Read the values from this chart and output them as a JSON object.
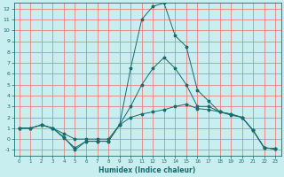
{
  "xlabel": "Humidex (Indice chaleur)",
  "xlim": [
    -0.5,
    23.5
  ],
  "ylim": [
    -1.5,
    12.5
  ],
  "yticks": [
    -1,
    0,
    1,
    2,
    3,
    4,
    5,
    6,
    7,
    8,
    9,
    10,
    11,
    12
  ],
  "xticks": [
    0,
    1,
    2,
    3,
    4,
    5,
    6,
    7,
    8,
    9,
    10,
    11,
    12,
    13,
    14,
    15,
    16,
    17,
    18,
    19,
    20,
    21,
    22,
    23
  ],
  "bg_color": "#c8eef0",
  "grid_color": "#f08080",
  "line_color": "#1a6b6b",
  "line_high_y": [
    1.0,
    1.0,
    1.3,
    1.0,
    0.2,
    -1.0,
    -0.2,
    -0.2,
    -0.2,
    1.3,
    6.5,
    11.0,
    12.2,
    12.5,
    9.5,
    8.5,
    4.5,
    3.5,
    2.5,
    2.3,
    2.0,
    0.8,
    -0.8,
    -0.9
  ],
  "line_mid_y": [
    1.0,
    1.0,
    1.3,
    1.0,
    0.1,
    -0.8,
    -0.2,
    -0.2,
    -0.2,
    1.3,
    3.0,
    5.0,
    6.5,
    7.5,
    6.5,
    5.0,
    3.0,
    3.0,
    2.5,
    2.2,
    2.0,
    0.8,
    -0.8,
    -0.9
  ],
  "line_low_y": [
    1.0,
    1.0,
    1.3,
    1.0,
    0.5,
    0.0,
    0.0,
    0.0,
    0.0,
    1.3,
    2.0,
    2.3,
    2.5,
    2.7,
    3.0,
    3.2,
    2.8,
    2.7,
    2.5,
    2.3,
    2.0,
    0.8,
    -0.8,
    -0.9
  ],
  "line_x": [
    0,
    1,
    2,
    3,
    4,
    5,
    6,
    7,
    8,
    9,
    10,
    11,
    12,
    13,
    14,
    15,
    16,
    17,
    18,
    19,
    20,
    21,
    22,
    23
  ]
}
